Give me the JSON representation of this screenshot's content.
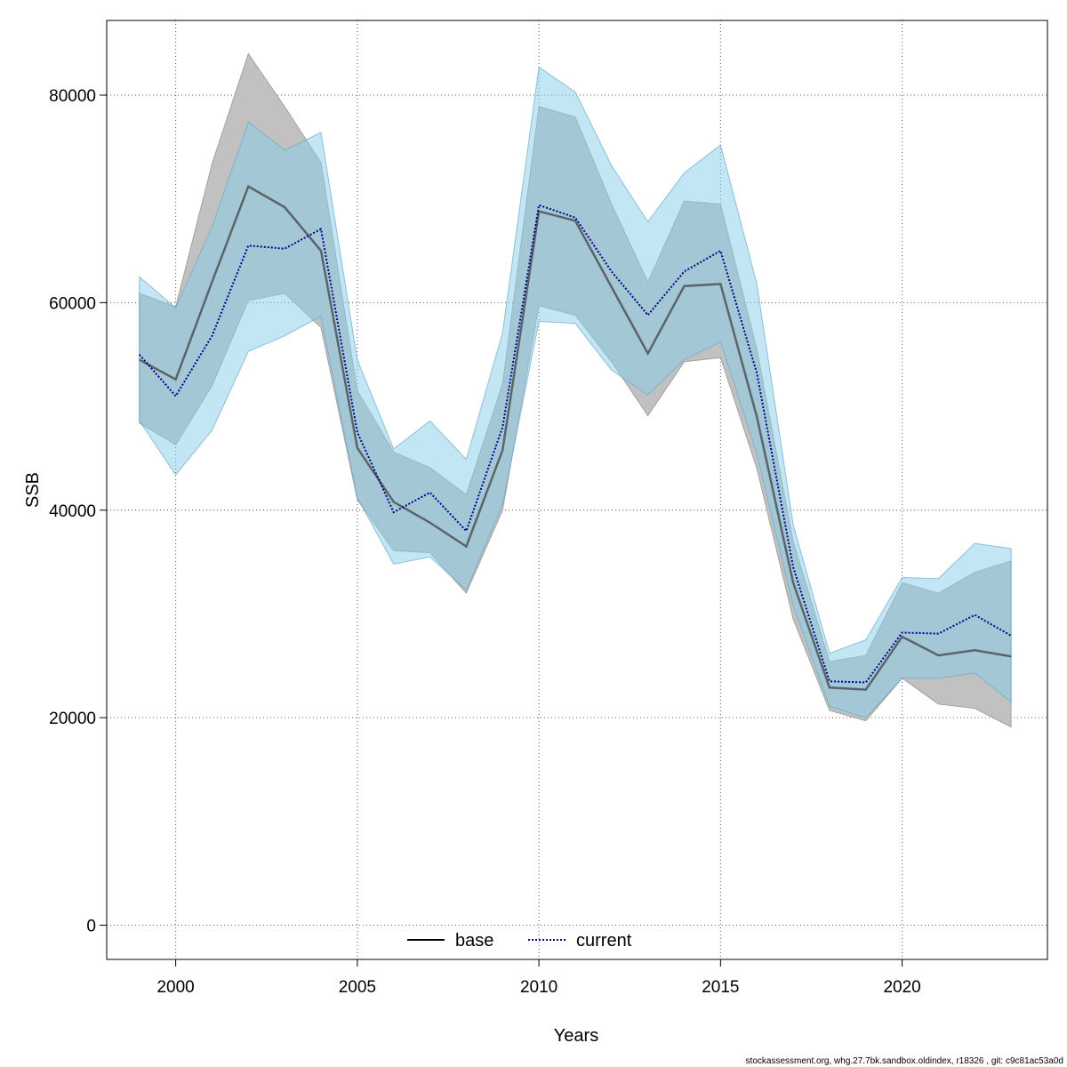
{
  "chart_data": {
    "type": "line",
    "xlabel": "Years",
    "ylabel": "SSB",
    "xlim": [
      1998.1,
      2024.0
    ],
    "ylim": [
      -3300,
      87200
    ],
    "x_ticks": [
      2000,
      2005,
      2010,
      2015,
      2020
    ],
    "y_ticks": [
      0,
      20000,
      40000,
      60000,
      80000
    ],
    "grid": true,
    "legend_position": "bottom-center",
    "footer": "stockassessment.org, whg.27.7bk.sandbox.oldindex, r18326 , git: c9c81ac53a0d",
    "x": [
      1999,
      2000,
      2001,
      2002,
      2003,
      2004,
      2005,
      2006,
      2007,
      2008,
      2009,
      2010,
      2011,
      2012,
      2013,
      2014,
      2015,
      2016,
      2017,
      2018,
      2019,
      2020,
      2021,
      2022,
      2023
    ],
    "series": [
      {
        "name": "base",
        "line_color": "#000000",
        "line_style": "solid",
        "band_color": "#bebebe",
        "values": [
          54500,
          52600,
          62000,
          71200,
          69200,
          65000,
          46000,
          40800,
          38800,
          36500,
          45800,
          68800,
          67900,
          61500,
          55100,
          61600,
          61800,
          49000,
          33000,
          22900,
          22700,
          27800,
          26000,
          26500,
          25900
        ],
        "lower": [
          48400,
          46300,
          52000,
          60200,
          60900,
          57600,
          41000,
          36100,
          35900,
          32000,
          40000,
          59700,
          58800,
          54300,
          49100,
          54300,
          54700,
          44000,
          29500,
          20700,
          19700,
          23800,
          21300,
          20900,
          19100
        ],
        "upper": [
          60900,
          59600,
          73400,
          84000,
          78900,
          73500,
          51500,
          45600,
          44100,
          41500,
          52200,
          78900,
          77900,
          69500,
          62000,
          69800,
          69500,
          55500,
          37000,
          25400,
          26000,
          33000,
          32000,
          34000,
          35100
        ]
      },
      {
        "name": "current",
        "line_color": "#00008b",
        "line_style": "dotted",
        "band_color": "#87ceeb",
        "values": [
          55000,
          51000,
          56800,
          65500,
          65200,
          67100,
          47500,
          39800,
          41700,
          38000,
          48000,
          69400,
          68200,
          63000,
          58800,
          63000,
          65000,
          53200,
          34500,
          23500,
          23400,
          28200,
          28100,
          29900,
          27900
        ],
        "lower": [
          48600,
          43400,
          47700,
          55300,
          56800,
          58700,
          41200,
          34800,
          35500,
          32300,
          40600,
          58200,
          58000,
          53500,
          51100,
          54500,
          56200,
          45400,
          30800,
          21100,
          20000,
          23800,
          23800,
          24300,
          21500
        ],
        "upper": [
          62500,
          59500,
          67300,
          77400,
          74700,
          76400,
          54500,
          45900,
          48600,
          44900,
          57100,
          82700,
          80300,
          73200,
          67800,
          72500,
          75200,
          61800,
          38600,
          26200,
          27500,
          33500,
          33400,
          36800,
          36300
        ]
      }
    ]
  }
}
